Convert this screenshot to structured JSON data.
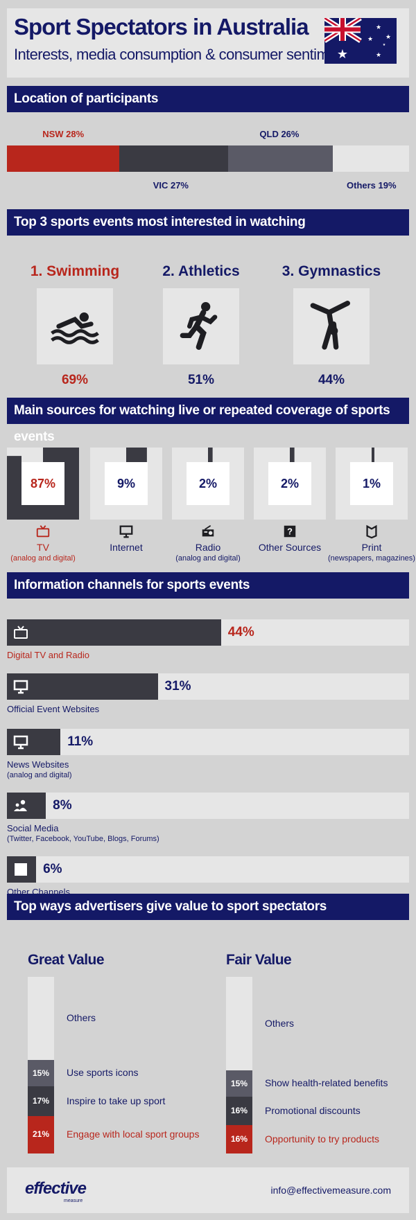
{
  "header": {
    "title": "Sport Spectators in Australia",
    "subtitle": "Interests, media consumption & consumer sentiment"
  },
  "sections": {
    "location": "Location of participants",
    "sports": "Top 3 sports events most interested in watching",
    "sources": "Main sources for watching live or repeated coverage of sports events",
    "channels": "Information channels for sports events",
    "advertisers": "Top ways advertisers give value to sport spectators"
  },
  "colors": {
    "navy": "#141966",
    "red": "#b8261c",
    "dark": "#3a3a42",
    "mid": "#5a5a66",
    "light": "#e6e6e6"
  },
  "chart_data": [
    {
      "type": "bar",
      "stacked": true,
      "orientation": "horizontal",
      "categories": [
        "NSW",
        "VIC",
        "QLD",
        "Others"
      ],
      "values": [
        28,
        27,
        26,
        19
      ],
      "labels": [
        "NSW 28%",
        "VIC 27%",
        "QLD 26%",
        "Others 19%"
      ]
    },
    {
      "type": "table",
      "items": [
        {
          "rank": "1.",
          "name": "Swimming",
          "value": 69,
          "label": "69%",
          "icon": "swimmer-icon"
        },
        {
          "rank": "2.",
          "name": "Athletics",
          "value": 51,
          "label": "51%",
          "icon": "runner-icon"
        },
        {
          "rank": "3.",
          "name": "Gymnastics",
          "value": 44,
          "label": "44%",
          "icon": "gymnast-icon"
        }
      ]
    },
    {
      "type": "bar",
      "items": [
        {
          "name": "TV",
          "sub": "(analog and digital)",
          "value": 87,
          "label": "87%",
          "icon": "tv-icon"
        },
        {
          "name": "Internet",
          "sub": "",
          "value": 9,
          "label": "9%",
          "icon": "monitor-icon"
        },
        {
          "name": "Radio",
          "sub": "(analog and digital)",
          "value": 2,
          "label": "2%",
          "icon": "radio-icon"
        },
        {
          "name": "Other Sources",
          "sub": "",
          "value": 2,
          "label": "2%",
          "icon": "question-icon"
        },
        {
          "name": "Print",
          "sub": "(newspapers, magazines)",
          "value": 1,
          "label": "1%",
          "icon": "print-icon"
        }
      ]
    },
    {
      "type": "bar",
      "orientation": "horizontal",
      "xlim": [
        0,
        100
      ],
      "items": [
        {
          "name": "Digital TV and Radio",
          "sub": "",
          "value": 44,
          "label": "44%",
          "icon": "tv-icon"
        },
        {
          "name": "Official Event Websites",
          "sub": "",
          "value": 31,
          "label": "31%",
          "icon": "monitor-icon"
        },
        {
          "name": "News Websites",
          "sub": "(analog and digital)",
          "value": 11,
          "label": "11%",
          "icon": "monitor-icon"
        },
        {
          "name": "Social Media",
          "sub": "(Twitter, Facebook, YouTube, Blogs, Forums)",
          "value": 8,
          "label": "8%",
          "icon": "people-icon"
        },
        {
          "name": "Other Channels",
          "sub": "",
          "value": 6,
          "label": "6%",
          "icon": "question-icon"
        }
      ]
    },
    {
      "type": "bar",
      "stacked": true,
      "title": "Great Value",
      "segments": [
        {
          "name": "Engage with local sport groups",
          "value": 21,
          "label": "21%"
        },
        {
          "name": "Inspire to take up sport",
          "value": 17,
          "label": "17%"
        },
        {
          "name": "Use sports icons",
          "value": 15,
          "label": "15%"
        },
        {
          "name": "Others",
          "value": 47,
          "label": ""
        }
      ]
    },
    {
      "type": "bar",
      "stacked": true,
      "title": "Fair Value",
      "segments": [
        {
          "name": "Opportunity to try products",
          "value": 16,
          "label": "16%"
        },
        {
          "name": "Promotional discounts",
          "value": 16,
          "label": "16%"
        },
        {
          "name": "Show health-related benefits",
          "value": 15,
          "label": "15%"
        },
        {
          "name": "Others",
          "value": 53,
          "label": ""
        }
      ]
    }
  ],
  "footer": {
    "logo_text": "effective",
    "logo_sub": "measure",
    "email": "info@effectivemeasure.com"
  }
}
